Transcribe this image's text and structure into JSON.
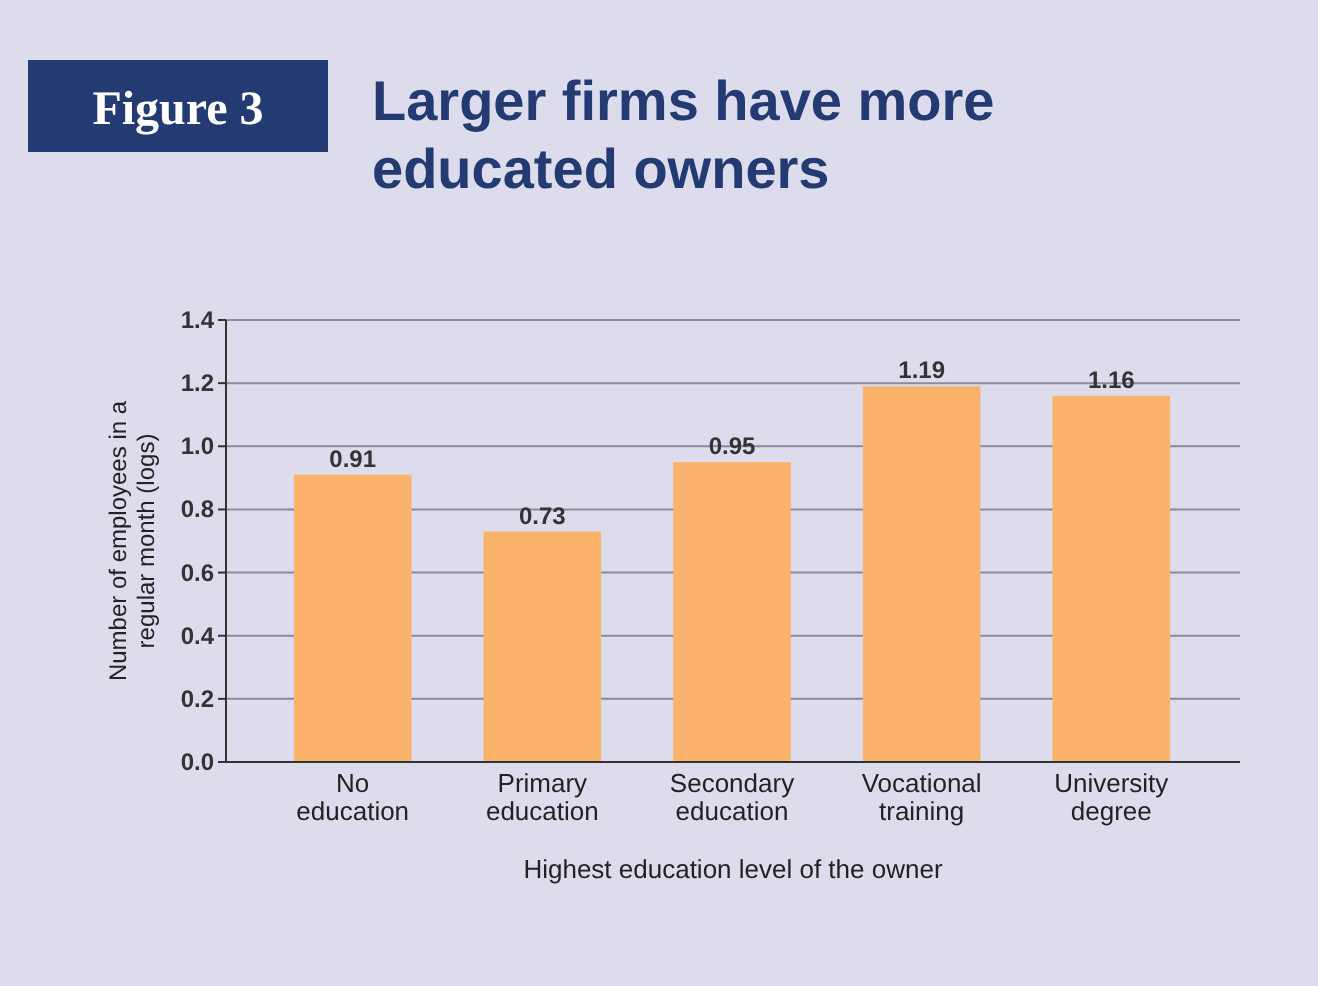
{
  "chart_data": {
    "type": "bar",
    "title": "Larger firms have more educated owners",
    "annotations": [
      "Figure 3"
    ],
    "xlabel": "Highest education level of the owner",
    "ylabel": "Number of employees in a regular month (logs)",
    "categories": [
      "No education",
      "Primary education",
      "Secondary education",
      "Vocational training",
      "University degree"
    ],
    "values": [
      0.91,
      0.73,
      0.95,
      1.19,
      1.16
    ],
    "color": "#fbb36c",
    "data_labels": true,
    "grid": "y",
    "ylim": [
      0,
      1.4
    ],
    "yticks": [
      {
        "value": 0,
        "label": "0.0"
      },
      {
        "value": 0.2,
        "label": "0.2"
      },
      {
        "value": 0.4,
        "label": "0.4"
      },
      {
        "value": 0.6,
        "label": "0.6"
      },
      {
        "value": 0.8,
        "label": "0.8"
      },
      {
        "value": 1,
        "label": "1.0"
      },
      {
        "value": 1.2,
        "label": "1.2"
      },
      {
        "value": 1.4,
        "label": "1.4"
      }
    ]
  }
}
